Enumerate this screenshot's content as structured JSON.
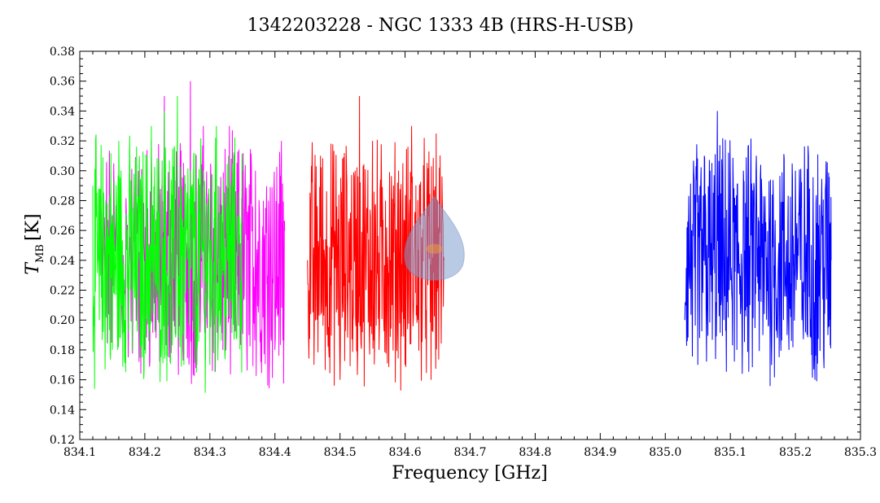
{
  "chart_data": {
    "type": "line",
    "title": "1342203228 - NGC 1333 4B (HRS-H-USB)",
    "xlabel": "Frequency [GHz]",
    "ylabel_main": "T",
    "ylabel_sub": "MB",
    "ylabel_unit": "[K]",
    "xlim": [
      834.1,
      835.3
    ],
    "ylim": [
      0.12,
      0.38
    ],
    "xticks": [
      "834.1",
      "834.2",
      "834.3",
      "834.4",
      "834.5",
      "834.6",
      "834.7",
      "834.8",
      "834.9",
      "835.0",
      "835.1",
      "835.2",
      "835.3"
    ],
    "yticks": [
      "0.12",
      "0.14",
      "0.16",
      "0.18",
      "0.20",
      "0.22",
      "0.24",
      "0.26",
      "0.28",
      "0.30",
      "0.32",
      "0.34",
      "0.36",
      "0.38"
    ],
    "grid": false,
    "series": [
      {
        "color": "#ff00ff",
        "x": [
          834.13,
          834.15,
          834.17,
          834.19,
          834.2,
          834.21,
          834.22,
          834.23,
          834.24,
          834.25,
          834.26,
          834.27,
          834.28,
          834.29,
          834.3,
          834.31,
          834.32,
          834.33,
          834.34,
          834.35,
          834.36,
          834.37,
          834.38,
          834.39,
          834.4,
          834.41,
          834.415
        ],
        "y": [
          0.23,
          0.27,
          0.22,
          0.3,
          0.18,
          0.32,
          0.2,
          0.35,
          0.19,
          0.31,
          0.24,
          0.36,
          0.17,
          0.33,
          0.21,
          0.29,
          0.18,
          0.33,
          0.22,
          0.3,
          0.19,
          0.3,
          0.2,
          0.28,
          0.18,
          0.32,
          0.26
        ]
      },
      {
        "color": "#00ff00",
        "x": [
          834.12,
          834.13,
          834.14,
          834.15,
          834.16,
          834.17,
          834.18,
          834.19,
          834.2,
          834.21,
          834.22,
          834.23,
          834.24,
          834.25,
          834.26,
          834.27,
          834.28,
          834.29,
          834.3,
          834.31,
          834.32,
          834.33,
          834.34,
          834.35
        ],
        "y": [
          0.29,
          0.2,
          0.28,
          0.18,
          0.32,
          0.2,
          0.27,
          0.24,
          0.19,
          0.33,
          0.22,
          0.34,
          0.2,
          0.35,
          0.17,
          0.3,
          0.21,
          0.3,
          0.17,
          0.33,
          0.23,
          0.31,
          0.2,
          0.3
        ]
      },
      {
        "color": "#ff0000",
        "x": [
          834.45,
          834.46,
          834.47,
          834.48,
          834.49,
          834.5,
          834.51,
          834.52,
          834.53,
          834.54,
          834.55,
          834.56,
          834.57,
          834.58,
          834.59,
          834.6,
          834.61,
          834.62,
          834.63,
          834.64,
          834.65,
          834.66
        ],
        "y": [
          0.24,
          0.17,
          0.31,
          0.19,
          0.27,
          0.16,
          0.3,
          0.2,
          0.35,
          0.22,
          0.32,
          0.18,
          0.28,
          0.21,
          0.3,
          0.17,
          0.33,
          0.2,
          0.27,
          0.16,
          0.28,
          0.24
        ]
      },
      {
        "color": "#0000ff",
        "x": [
          835.03,
          835.04,
          835.05,
          835.06,
          835.07,
          835.08,
          835.09,
          835.1,
          835.11,
          835.12,
          835.13,
          835.14,
          835.15,
          835.16,
          835.17,
          835.18,
          835.19,
          835.2,
          835.21,
          835.22,
          835.23,
          835.24,
          835.25,
          835.255
        ],
        "y": [
          0.2,
          0.26,
          0.17,
          0.31,
          0.23,
          0.34,
          0.2,
          0.29,
          0.18,
          0.3,
          0.21,
          0.31,
          0.19,
          0.27,
          0.22,
          0.27,
          0.18,
          0.3,
          0.2,
          0.31,
          0.16,
          0.28,
          0.19,
          0.24
        ]
      }
    ]
  },
  "logo": {
    "name": "hifi-logo-icon",
    "color": "#7f9fd0"
  }
}
